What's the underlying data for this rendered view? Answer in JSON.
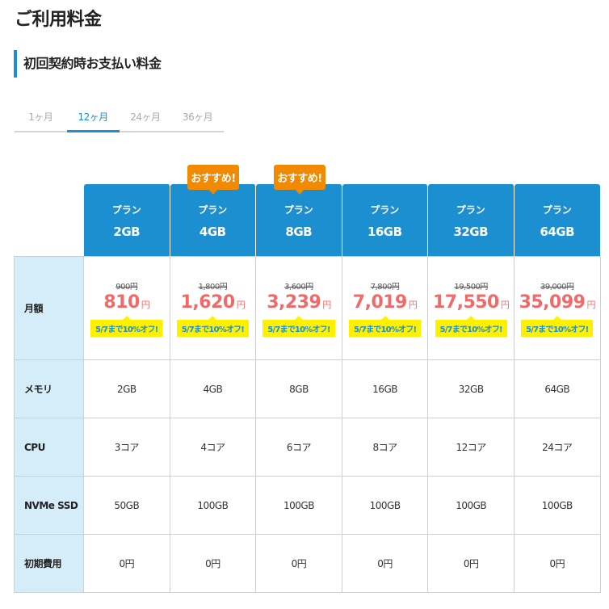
{
  "page_title": "ご利用料金",
  "section_heading": "初回契約時お支払い料金",
  "tabs": [
    {
      "label": "1ヶ月",
      "active": false
    },
    {
      "label": "12ヶ月",
      "active": true
    },
    {
      "label": "24ヶ月",
      "active": false
    },
    {
      "label": "36ヶ月",
      "active": false
    }
  ],
  "recommend_badge": "おすすめ!",
  "plan_label": "プラン",
  "plans": [
    {
      "size": "2GB",
      "recommended": false,
      "original_price": "900円",
      "price": "810",
      "promo": "5/7まで10%オフ!",
      "memory": "2GB",
      "cpu": "3コア",
      "ssd": "50GB",
      "initial_fee": "0円"
    },
    {
      "size": "4GB",
      "recommended": true,
      "original_price": "1,800円",
      "price": "1,620",
      "promo": "5/7まで10%オフ!",
      "memory": "4GB",
      "cpu": "4コア",
      "ssd": "100GB",
      "initial_fee": "0円"
    },
    {
      "size": "8GB",
      "recommended": true,
      "original_price": "3,600円",
      "price": "3,239",
      "promo": "5/7まで10%オフ!",
      "memory": "8GB",
      "cpu": "6コア",
      "ssd": "100GB",
      "initial_fee": "0円"
    },
    {
      "size": "16GB",
      "recommended": false,
      "original_price": "7,800円",
      "price": "7,019",
      "promo": "5/7まで10%オフ!",
      "memory": "16GB",
      "cpu": "8コア",
      "ssd": "100GB",
      "initial_fee": "0円"
    },
    {
      "size": "32GB",
      "recommended": false,
      "original_price": "19,500円",
      "price": "17,550",
      "promo": "5/7まで10%オフ!",
      "memory": "32GB",
      "cpu": "12コア",
      "ssd": "100GB",
      "initial_fee": "0円"
    },
    {
      "size": "64GB",
      "recommended": false,
      "original_price": "39,000円",
      "price": "35,099",
      "promo": "5/7まで10%オフ!",
      "memory": "64GB",
      "cpu": "24コア",
      "ssd": "100GB",
      "initial_fee": "0円"
    }
  ],
  "currency_suffix": "円",
  "row_labels": {
    "monthly": "月額",
    "memory": "メモリ",
    "cpu": "CPU",
    "ssd": "NVMe SSD",
    "initial_fee": "初期費用"
  },
  "colors": {
    "accent_blue": "#1b8fd0",
    "badge_orange": "#f18a00",
    "price_red": "#f06a6a",
    "promo_yellow": "#fff000",
    "label_bg": "#d5ecf9"
  }
}
